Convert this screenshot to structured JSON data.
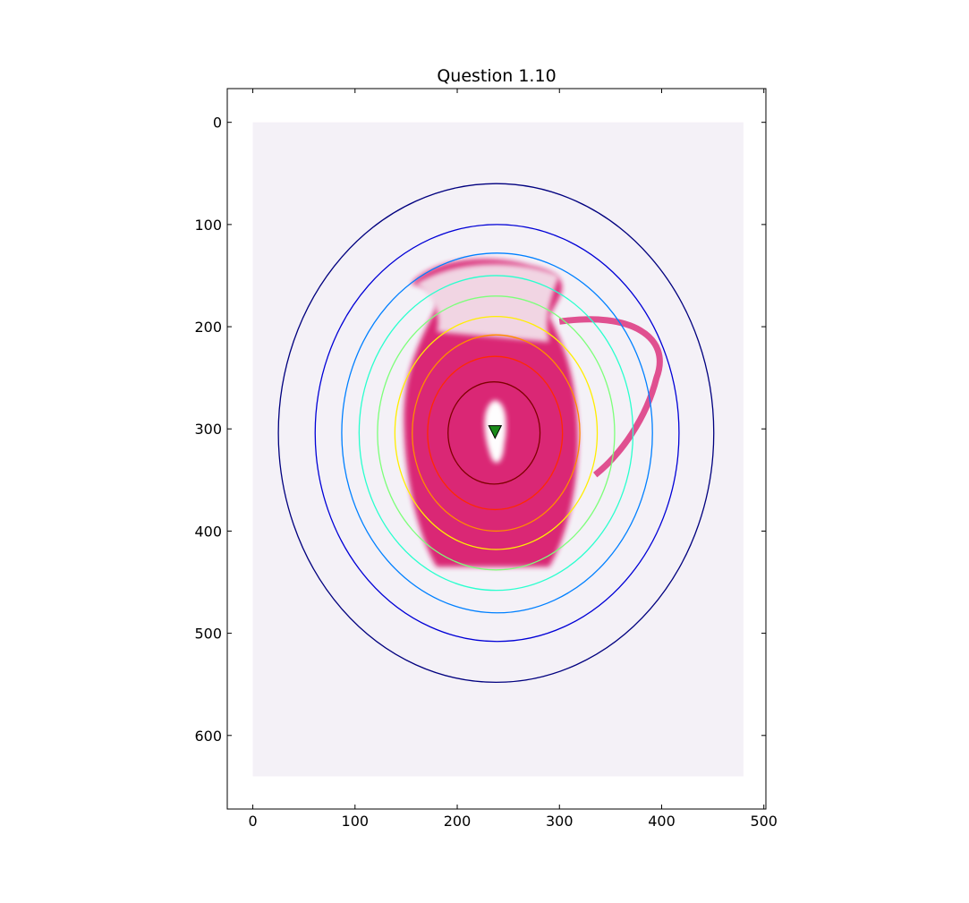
{
  "chart_data": {
    "type": "contour",
    "title": "Question 1.10",
    "xlabel": "",
    "ylabel": "",
    "xlim": [
      -25,
      502
    ],
    "ylim": [
      672,
      -33
    ],
    "y_inverted": true,
    "grid": false,
    "x_ticks": [
      0,
      100,
      200,
      300,
      400,
      500
    ],
    "y_ticks": [
      0,
      100,
      200,
      300,
      400,
      500,
      600
    ],
    "x_tick_labels": [
      "0",
      "100",
      "200",
      "300",
      "400",
      "500"
    ],
    "y_tick_labels": [
      "0",
      "100",
      "200",
      "300",
      "400",
      "500",
      "600"
    ],
    "image": {
      "extent_x": [
        0,
        480
      ],
      "extent_y": [
        0,
        640
      ],
      "background_color": "#f4f1f7",
      "subject_color": "#d8176b"
    },
    "contours": [
      {
        "cx": 238,
        "cy": 304,
        "rx": 213,
        "ry": 244,
        "color": "#00007f"
      },
      {
        "cx": 239,
        "cy": 304,
        "rx": 178,
        "ry": 204,
        "color": "#0000d6"
      },
      {
        "cx": 239,
        "cy": 304,
        "rx": 152,
        "ry": 176,
        "color": "#0080ff"
      },
      {
        "cx": 238,
        "cy": 304,
        "rx": 134,
        "ry": 154,
        "color": "#29ffce"
      },
      {
        "cx": 238,
        "cy": 304,
        "rx": 116,
        "ry": 134,
        "color": "#7dff7a"
      },
      {
        "cx": 238,
        "cy": 304,
        "rx": 99,
        "ry": 114,
        "color": "#ffee00"
      },
      {
        "cx": 238,
        "cy": 304,
        "rx": 82,
        "ry": 96,
        "color": "#ff8c00"
      },
      {
        "cx": 237,
        "cy": 304,
        "rx": 66,
        "ry": 75,
        "color": "#ff2a00"
      },
      {
        "cx": 236,
        "cy": 304,
        "rx": 45,
        "ry": 50,
        "color": "#7f0000"
      }
    ],
    "marker": {
      "x": 237,
      "y": 303,
      "shape": "triangle-down",
      "color": "#1a8a1a"
    }
  }
}
